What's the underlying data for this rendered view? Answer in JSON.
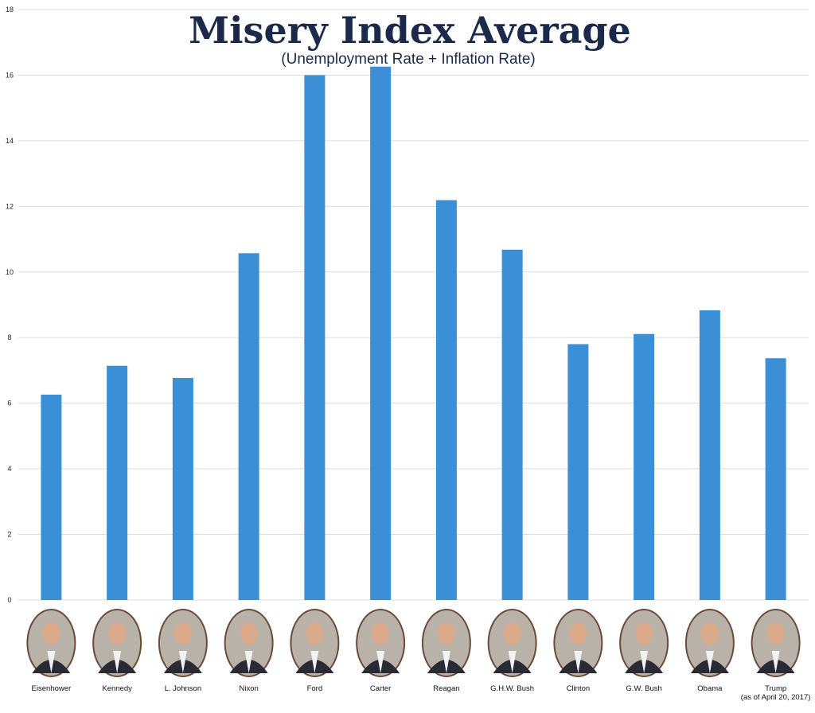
{
  "chart_data": {
    "type": "bar",
    "title": "Misery Index Average",
    "subtitle": "(Unemployment Rate + Inflation Rate)",
    "categories": [
      "Eisenhower",
      "Kennedy",
      "L. Johnson",
      "Nixon",
      "Ford",
      "Carter",
      "Reagan",
      "G.H.W. Bush",
      "Clinton",
      "G.W. Bush",
      "Obama",
      "Trump"
    ],
    "category_notes": {
      "Trump": "(as of April 20, 2017)"
    },
    "values": [
      6.26,
      7.14,
      6.77,
      10.57,
      16.0,
      16.26,
      12.19,
      10.68,
      7.8,
      8.11,
      8.83,
      7.37
    ],
    "yticks": [
      0,
      2,
      4,
      6,
      8,
      10,
      12,
      14,
      16,
      18
    ],
    "ylim": [
      0,
      18
    ],
    "xlabel": "",
    "ylabel": "",
    "grid": true,
    "legend": "none",
    "bar_color": "#3b8fd6",
    "grid_color": "#dddddd",
    "title_color": "#1b2a4a",
    "portraits": "oval portrait photo under each bar"
  }
}
